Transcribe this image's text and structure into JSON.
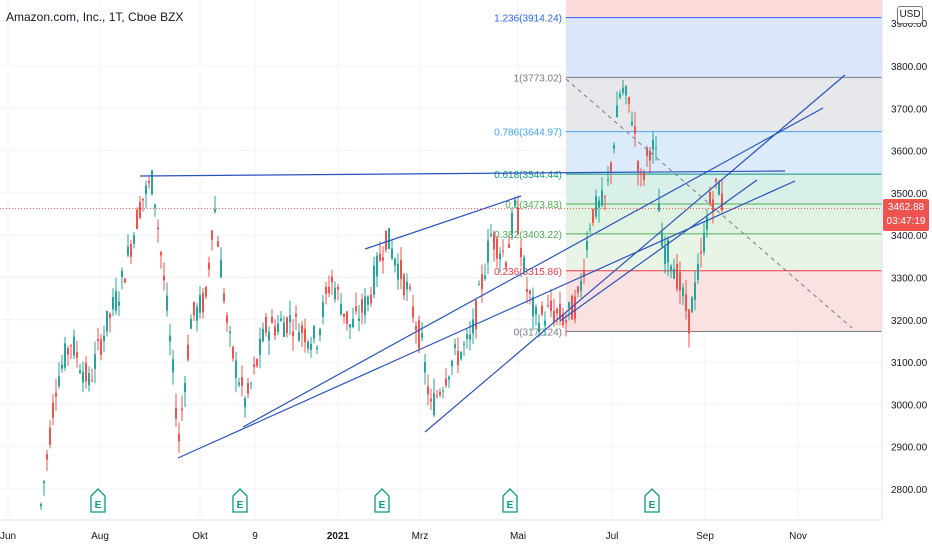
{
  "chart_title": "Amazon.com, Inc., 1T, Cboe BZX",
  "currency": "USD",
  "last_price": "3462.88",
  "countdown": "03:47:19",
  "chart_data": {
    "type": "candlestick",
    "ylim": [
      2730,
      4000
    ],
    "y_ticks": [
      2800,
      2900,
      3000,
      3100,
      3200,
      3300,
      3400,
      3500,
      3600,
      3700,
      3800
    ],
    "y_tick_labels": [
      "2800.00",
      "2900.00",
      "3000.00",
      "3100.00",
      "3200.00",
      "3300.00",
      "3400.00",
      "3500.00",
      "3600.00",
      "3700.00",
      "3800.00"
    ],
    "top_label_partial": "3900.00",
    "x_labels": [
      "Jun",
      "Aug",
      "Okt",
      "9",
      "2021",
      "Mrz",
      "Mai",
      "Jul",
      "Sep",
      "Nov"
    ],
    "x_label_bold": [
      false,
      false,
      false,
      false,
      true,
      false,
      false,
      false,
      false,
      false
    ],
    "earnings_marker": "E",
    "fibonacci": [
      {
        "ratio": "1.236",
        "price": 3914.24,
        "label": "1.236(3914.24)",
        "color": "#2962ff"
      },
      {
        "ratio": "1",
        "price": 3773.02,
        "label": "1(3773.02)",
        "color": "#787b86"
      },
      {
        "ratio": "0.786",
        "price": 3644.97,
        "label": "0.786(3644.97)",
        "color": "#42a5f5"
      },
      {
        "ratio": "0.618",
        "price": 3544.44,
        "label": "0.618(3544.44)",
        "color": "#089981"
      },
      {
        "ratio": "0.5",
        "price": 3473.83,
        "label": "0.5(3473.83)",
        "color": "#4caf50"
      },
      {
        "ratio": "0.382",
        "price": 3403.22,
        "label": "0.382(3403.22)",
        "color": "#4caf50"
      },
      {
        "ratio": "0.236",
        "price": 3315.86,
        "label": "0.236(3315.86)",
        "color": "#f23645"
      },
      {
        "ratio": "0",
        "price": 3172.24,
        "label": "0(3172.24)",
        "color": "#787b86"
      }
    ],
    "price_line": 3462.88,
    "color_up": "#26a69a",
    "color_down": "#ef5350"
  }
}
